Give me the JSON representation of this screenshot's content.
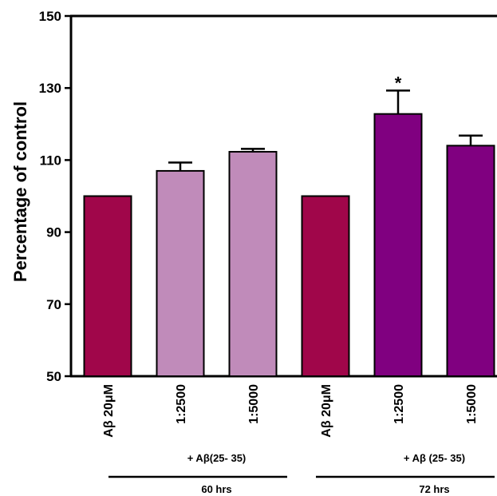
{
  "chart_data": {
    "type": "bar",
    "ylabel": "Percentage of control",
    "ylim": [
      50,
      150
    ],
    "yticks": [
      50,
      70,
      90,
      110,
      130,
      150
    ],
    "categories": [
      "Aβ 20μM",
      "1:2500",
      "1:5000",
      "Aβ 20μM",
      "1:2500",
      "1:5000"
    ],
    "values": [
      100,
      107,
      112.3,
      100,
      122.8,
      114
    ],
    "errors": [
      0,
      2.3,
      0.8,
      0,
      6.5,
      2.8
    ],
    "significance": [
      "",
      "",
      "",
      "",
      "*",
      ""
    ],
    "colors": [
      "#a0064a",
      "#c08bba",
      "#c08bba",
      "#a0064a",
      "#800080",
      "#800080"
    ],
    "groups": [
      {
        "treatment": "+ Aβ(25- 35)",
        "time": "60 hrs",
        "span": [
          1,
          2
        ]
      },
      {
        "treatment": "+ Aβ (25- 35)",
        "time": "72 hrs",
        "span": [
          4,
          5
        ]
      }
    ],
    "grid": false
  }
}
